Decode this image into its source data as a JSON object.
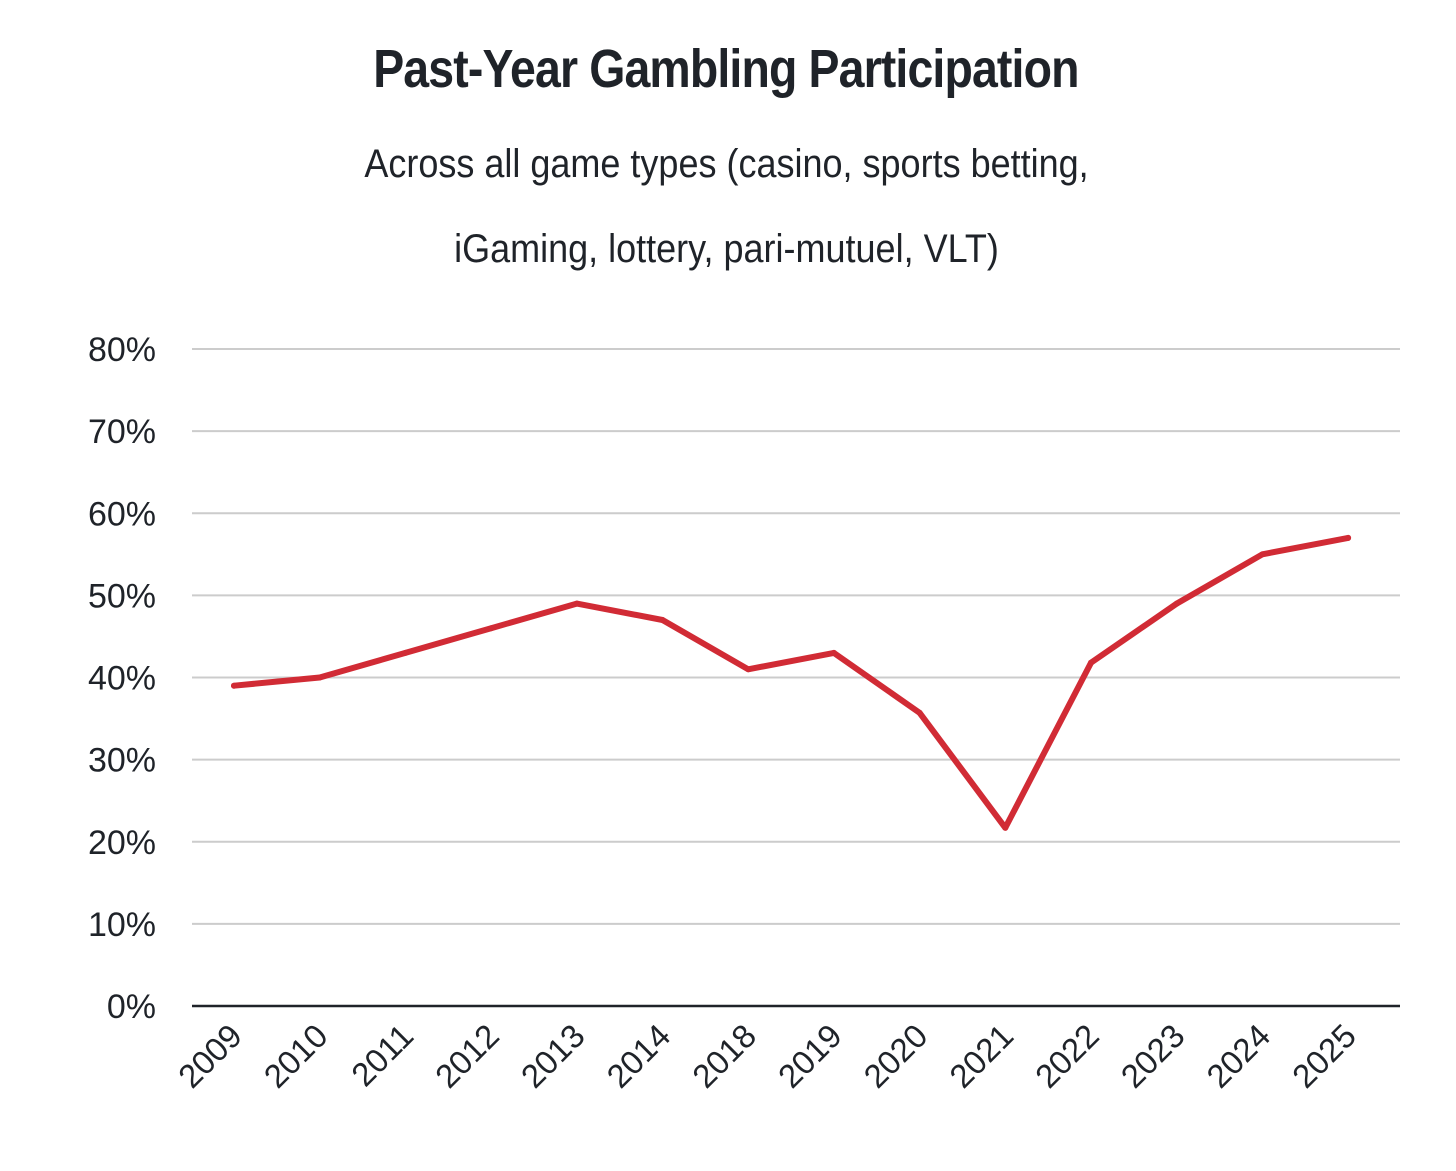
{
  "chart_data": {
    "type": "line",
    "title": "Past-Year Gambling Participation",
    "subtitle_lines": [
      "Across all game types (casino, sports betting,",
      "iGaming, lottery, pari-mutuel, VLT)"
    ],
    "categories": [
      "2009",
      "2010",
      "2011",
      "2012",
      "2013",
      "2014",
      "2018",
      "2019",
      "2020",
      "2021",
      "2022",
      "2023",
      "2024",
      "2025"
    ],
    "series": [
      {
        "values": [
          39,
          40,
          43,
          46,
          49,
          47,
          41,
          43,
          35.7,
          21.7,
          41.8,
          49,
          55,
          57
        ],
        "color": "#d12b35"
      }
    ],
    "y_ticks": [
      "0%",
      "10%",
      "20%",
      "30%",
      "40%",
      "50%",
      "60%",
      "70%",
      "80%"
    ],
    "y_tick_values": [
      0,
      10,
      20,
      30,
      40,
      50,
      60,
      70,
      80
    ],
    "ylim": [
      0,
      80
    ],
    "grid": true,
    "grid_color": "#cccccc",
    "axis_color": "#1f2329",
    "legend": "none"
  }
}
